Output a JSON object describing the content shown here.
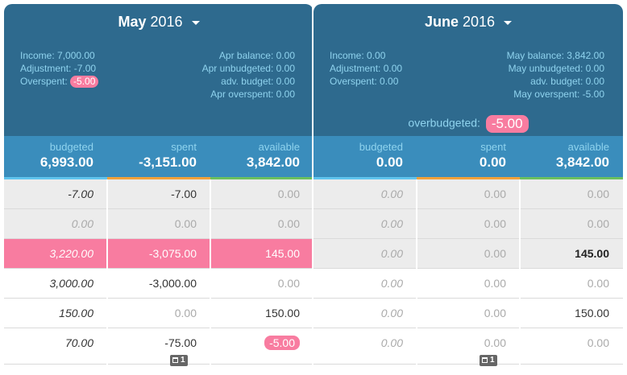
{
  "months": [
    {
      "name": "May",
      "year": "2016",
      "info_left": [
        "Income: 7,000.00",
        "Adjustment: -7.00"
      ],
      "overspent_label": "Overspent: ",
      "overspent_value": "-5.00",
      "info_right": [
        "Apr balance: 0.00",
        "Apr unbudgeted: 0.00",
        "adv. budget: 0.00",
        "Apr overspent: 0.00"
      ],
      "totals": {
        "budgeted_label": "budgeted",
        "budgeted": "6,993.00",
        "spent_label": "spent",
        "spent": "-3,151.00",
        "available_label": "available",
        "available": "3,842.00"
      },
      "rows": [
        [
          "-7.00",
          "-7.00",
          "0.00"
        ],
        [
          "0.00",
          "0.00",
          "0.00"
        ],
        [
          "3,220.00",
          "-3,075.00",
          "145.00"
        ],
        [
          "3,000.00",
          "-3,000.00",
          "0.00"
        ],
        [
          "150.00",
          "0.00",
          "150.00"
        ],
        [
          "70.00",
          "-75.00",
          "-5.00"
        ]
      ],
      "note_count": "1"
    },
    {
      "name": "June",
      "year": "2016",
      "info_left": [
        "Income: 0.00",
        "Adjustment: 0.00",
        "Overspent: 0.00"
      ],
      "info_right": [
        "May balance: 3,842.00",
        "May unbudgeted: 0.00",
        "adv. budget: 0.00",
        "May overspent: -5.00"
      ],
      "overbudgeted_label": "overbudgeted:",
      "overbudgeted_value": "-5.00",
      "totals": {
        "budgeted_label": "budgeted",
        "budgeted": "0.00",
        "spent_label": "spent",
        "spent": "0.00",
        "available_label": "available",
        "available": "3,842.00"
      },
      "rows": [
        [
          "0.00",
          "0.00",
          "0.00"
        ],
        [
          "0.00",
          "0.00",
          "0.00"
        ],
        [
          "0.00",
          "0.00",
          "145.00"
        ],
        [
          "0.00",
          "0.00",
          "0.00"
        ],
        [
          "0.00",
          "0.00",
          "150.00"
        ],
        [
          "0.00",
          "0.00",
          "0.00"
        ]
      ],
      "note_count": "1"
    }
  ],
  "colors": {
    "header_bg": "#2e6a8e",
    "totals_bg": "#3a8dbc",
    "info_text": "#8fd3ee",
    "overspent_pink": "#f87ca0",
    "budgeted_line": "#5fc4ee",
    "spent_line": "#f0a13a",
    "available_line": "#6ac05f"
  }
}
